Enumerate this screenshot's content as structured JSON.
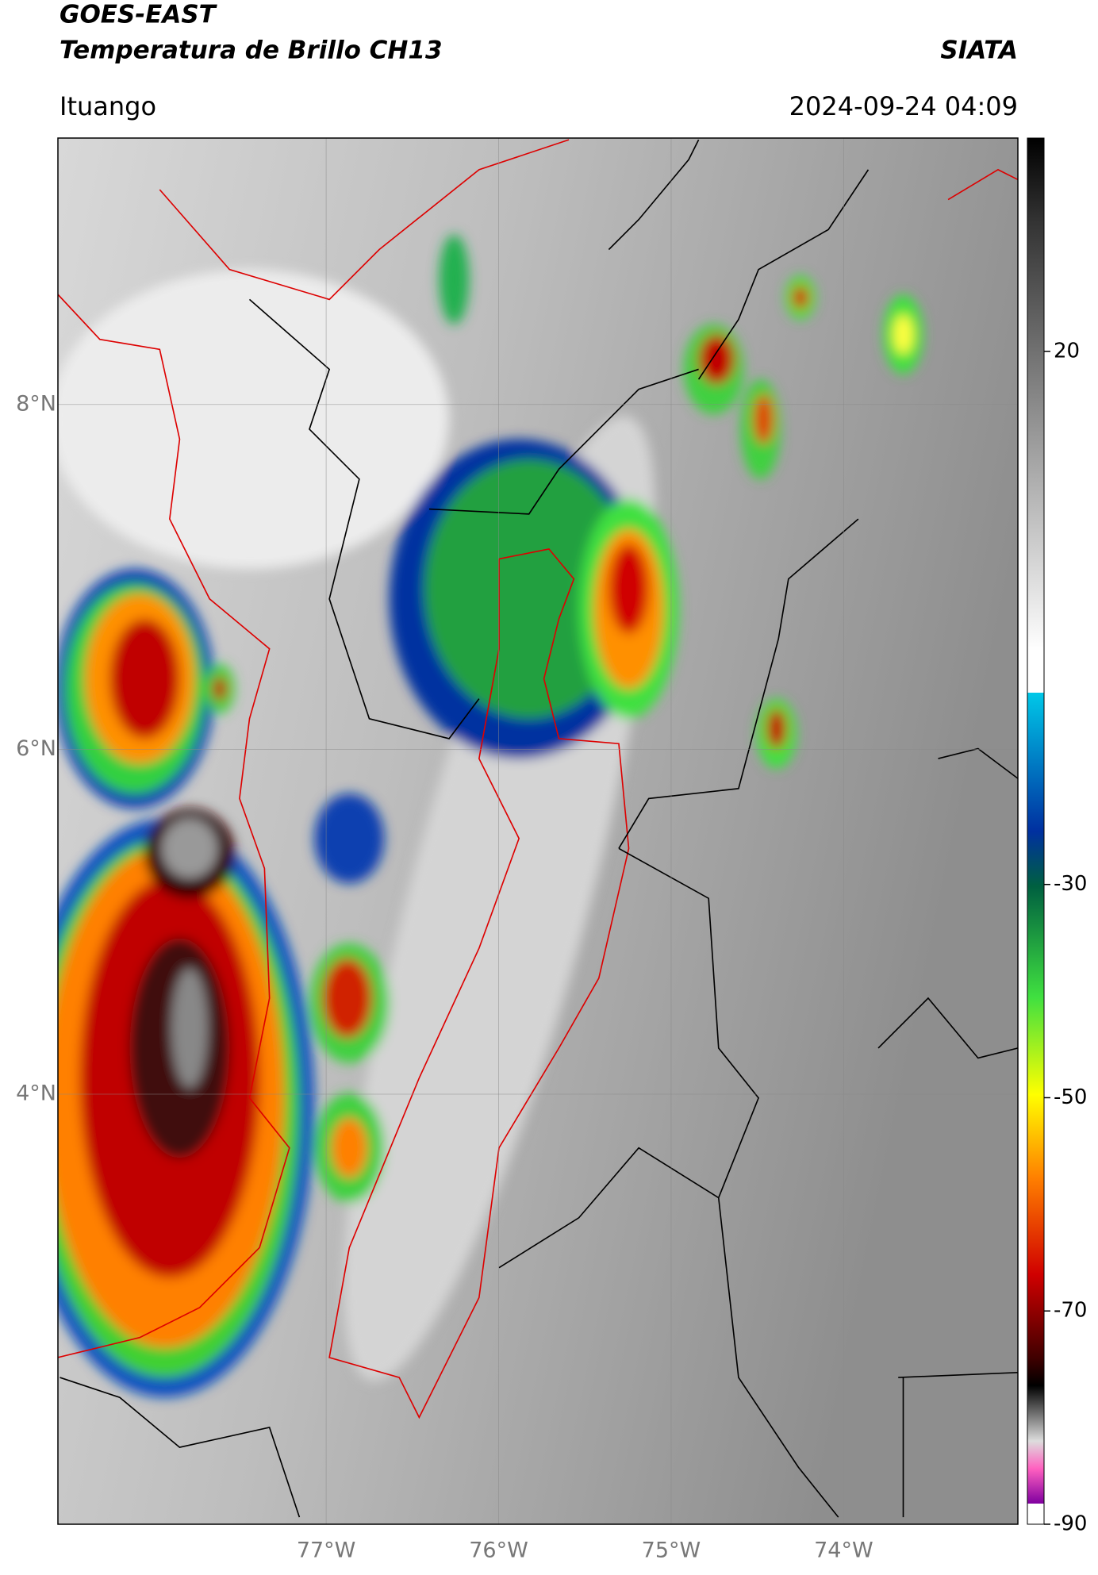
{
  "header": {
    "satellite": "GOES-EAST",
    "product": "Temperatura de Brillo CH13",
    "organization": "SIATA",
    "location": "Ituango",
    "timestamp": "2024-09-24 04:09"
  },
  "map": {
    "lon_range": [
      -78.555,
      -72.99
    ],
    "lat_range": [
      1.506,
      9.545
    ],
    "lon_ticks": [
      {
        "value": -77,
        "label": "77°W"
      },
      {
        "value": -76,
        "label": "76°W"
      },
      {
        "value": -75,
        "label": "75°W"
      },
      {
        "value": -74,
        "label": "74°W"
      }
    ],
    "lat_ticks": [
      {
        "value": 8,
        "label": "8°N"
      },
      {
        "value": 6,
        "label": "6°N"
      },
      {
        "value": 4,
        "label": "4°N"
      }
    ]
  },
  "colorbar": {
    "range": [
      -90,
      40
    ],
    "ticks": [
      20,
      -30,
      -50,
      -70,
      -90
    ]
  }
}
